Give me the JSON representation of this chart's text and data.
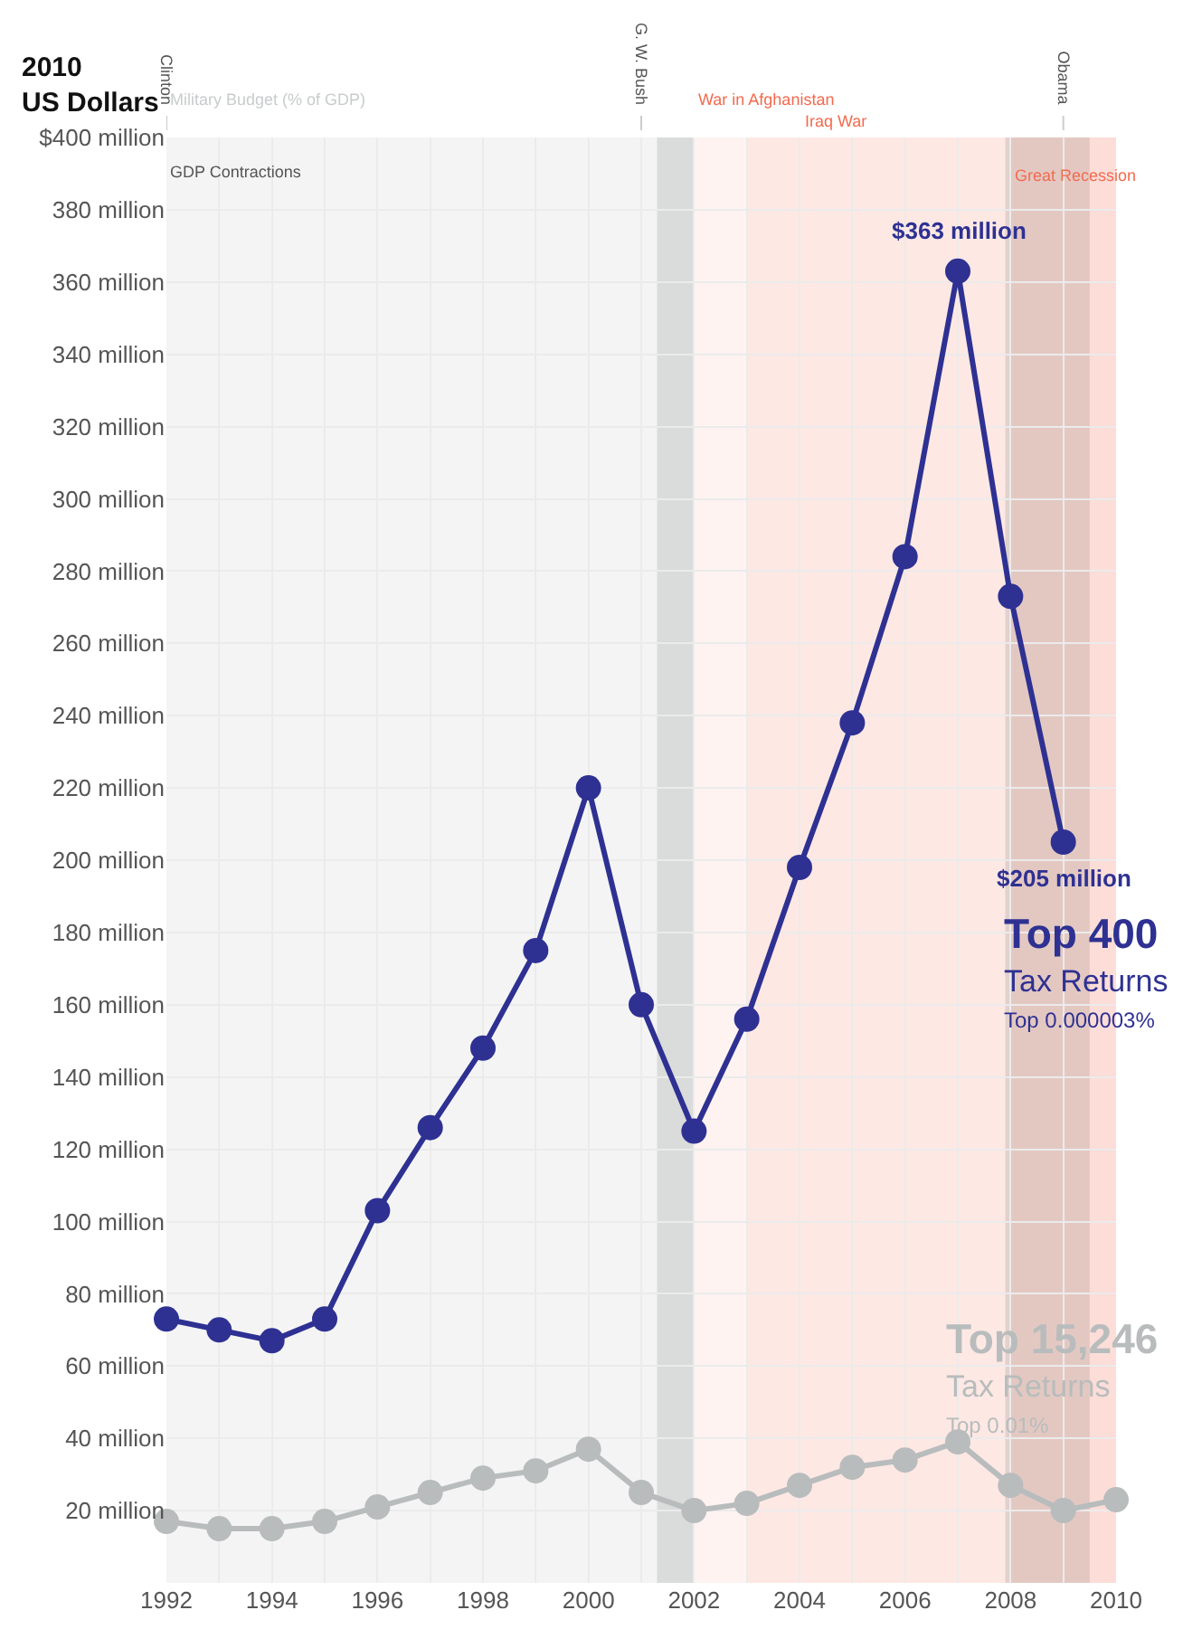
{
  "chart_data": {
    "type": "line",
    "ylabel": "2010\nUS Dollars",
    "x": [
      1992,
      1993,
      1994,
      1995,
      1996,
      1997,
      1998,
      1999,
      2000,
      2001,
      2002,
      2003,
      2004,
      2005,
      2006,
      2007,
      2008,
      2009,
      2010
    ],
    "series": [
      {
        "name": "Top 400",
        "color": "#2e3192",
        "values": [
          73,
          70,
          67,
          73,
          103,
          126,
          148,
          175,
          220,
          160,
          125,
          156,
          198,
          238,
          284,
          363,
          273,
          205,
          null
        ],
        "value_labels": [
          null,
          null,
          null,
          null,
          null,
          null,
          null,
          null,
          null,
          null,
          null,
          null,
          null,
          null,
          null,
          "$363 million",
          null,
          "$205 million",
          null
        ]
      },
      {
        "name": "Top 15,246",
        "color": "#b8bcbc",
        "values": [
          17,
          15,
          15,
          17,
          21,
          25,
          29,
          31,
          37,
          25,
          20,
          22,
          27,
          32,
          34,
          39,
          27,
          20,
          23
        ]
      }
    ],
    "annotations": [
      "Tax Returns",
      "Top 0.000003%",
      "Tax Returns",
      "Top 0.01%"
    ],
    "xlim": [
      1992,
      2010
    ],
    "xticks": [
      1992,
      {
        "value": 1993,
        "label": null
      },
      1994,
      {
        "value": 1995,
        "label": null
      },
      1996,
      {
        "value": 1997,
        "label": null
      },
      1998,
      {
        "value": 1999,
        "label": null
      },
      2000,
      {
        "value": 2001,
        "label": null
      },
      2002,
      {
        "value": 2003,
        "label": null
      },
      2004,
      {
        "value": 2005,
        "label": null
      },
      2006,
      {
        "value": 2007,
        "label": null
      },
      2008,
      {
        "value": 2009,
        "label": null
      },
      2010
    ],
    "ylim": [
      0,
      400
    ],
    "yticks": [
      {
        "value": 20,
        "label": "20 million"
      },
      {
        "value": 40,
        "label": "40 million"
      },
      {
        "value": 60,
        "label": "60 million"
      },
      {
        "value": 80,
        "label": "80 million"
      },
      {
        "value": 100,
        "label": "100 million"
      },
      {
        "value": 120,
        "label": "120 million"
      },
      {
        "value": 140,
        "label": "140 million"
      },
      {
        "value": 160,
        "label": "160 million"
      },
      {
        "value": 180,
        "label": "180 million"
      },
      {
        "value": 200,
        "label": "200 million"
      },
      {
        "value": 220,
        "label": "220 million"
      },
      {
        "value": 240,
        "label": "240 million"
      },
      {
        "value": 260,
        "label": "260 million"
      },
      {
        "value": 280,
        "label": "280 million"
      },
      {
        "value": 300,
        "label": "300 million"
      },
      {
        "value": 320,
        "label": "320 million"
      },
      {
        "value": 340,
        "label": "340 million"
      },
      {
        "value": 360,
        "label": "360 million"
      },
      {
        "value": 380,
        "label": "380 million"
      },
      {
        "value": 400,
        "label": "$400 million"
      }
    ],
    "ref_lines": [
      {
        "axis": "x",
        "value": 1992,
        "label": "Clinton"
      },
      {
        "axis": "x",
        "value": 2001,
        "label": "G. W. Bush"
      },
      {
        "axis": "x",
        "value": 2009,
        "label": "Obama"
      }
    ],
    "bands": [
      {
        "axis": "x",
        "from": 1992,
        "to": 2002,
        "label": "Military Budget (% of GDP)",
        "color": "#d9dcdc"
      },
      {
        "axis": "x",
        "from": 2002,
        "to": 2010,
        "label": "War in Afghanistan",
        "color": "#f26b4f"
      },
      {
        "axis": "x",
        "from": 2003,
        "to": 2010,
        "label": "Iraq War",
        "color": "#f26b4f"
      },
      {
        "axis": "x",
        "from": 2001.3,
        "to": 2002,
        "label": "GDP Contractions",
        "color": "#3d4446"
      },
      {
        "axis": "x",
        "from": 2007.9,
        "to": 2009.5,
        "label": null,
        "color": "#3d4446"
      },
      {
        "axis": "x",
        "from": 2008,
        "to": 2010,
        "label": "Great Recession",
        "color": "#f26b4f"
      }
    ],
    "grid": true,
    "legend": false,
    "marker": "circle",
    "line_style": "solid"
  }
}
